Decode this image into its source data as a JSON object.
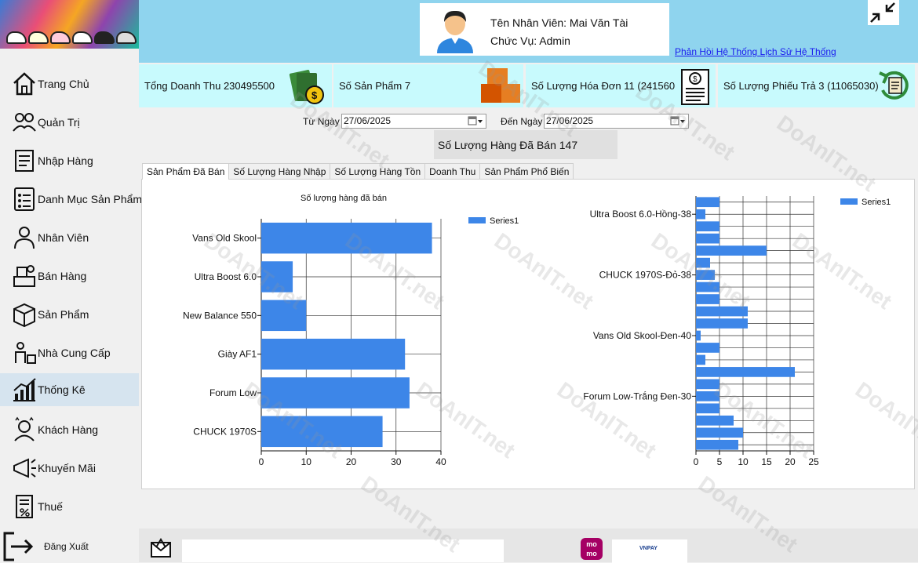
{
  "sidebar": {
    "items": [
      {
        "label": "Trang Chủ",
        "icon": "home-icon"
      },
      {
        "label": "Quản Trị",
        "icon": "people-gear-icon"
      },
      {
        "label": "Nhập Hàng",
        "icon": "import-icon"
      },
      {
        "label": "Danh Mục Sản Phẩm",
        "icon": "catalog-icon"
      },
      {
        "label": "Nhân Viên",
        "icon": "employee-icon"
      },
      {
        "label": "Bán Hàng",
        "icon": "sales-icon"
      },
      {
        "label": "Sản Phẩm",
        "icon": "box-icon"
      },
      {
        "label": "Nhà Cung Cấp",
        "icon": "supplier-icon"
      },
      {
        "label": "Thống Kê",
        "icon": "chart-icon",
        "active": true
      },
      {
        "label": "Khách Hàng",
        "icon": "customer-icon"
      },
      {
        "label": "Khuyến Mãi",
        "icon": "promotion-icon"
      },
      {
        "label": "Thuế",
        "icon": "tax-icon"
      }
    ],
    "logout_label": "Đăng Xuất"
  },
  "header": {
    "employee_name": "Tên Nhân Viên: Mai Văn Tài",
    "employee_role": "Chức Vụ: Admin",
    "link_feedback": "Phản Hồi Hệ Thống",
    "link_history": "Lịch Sử Hệ Thống"
  },
  "stats": {
    "revenue": "Tổng Doanh Thu 230495500",
    "products": "Số Sản Phẩm 7",
    "invoices": "Số Lượng Hóa Đơn 11 (241560500)",
    "returns": "Số Lượng Phiếu Trả 3 (11065030)"
  },
  "filters": {
    "from_label": "Từ Ngày",
    "from_value": "27/06/2025",
    "to_label": "Đến Ngày",
    "to_value": "27/06/2025"
  },
  "sold_total": "Số Lượng Hàng Đã Bán 147",
  "tabs": [
    "Sản Phẩm Đã Bán",
    "Số Lượng Hàng Nhập",
    "Số Lượng Hàng Tồn",
    "Doanh Thu",
    "Sản Phẩm Phổ Biến"
  ],
  "footer": {
    "momo_label": "mo mo",
    "vnpay_label": "VNPAY"
  },
  "watermark": "DoAnIT.net",
  "colors": {
    "header_bg": "#8fd4ee",
    "stat_bg": "#c8fafd",
    "bar": "#3d86e8",
    "link": "#1a1aee"
  },
  "chart_data": [
    {
      "type": "bar",
      "orientation": "horizontal",
      "title": "Số lượng hàng đã bán",
      "categories": [
        "Vans Old Skool",
        "Ultra Boost 6.0",
        "New Balance 550",
        "Giày AF1",
        "Forum Low",
        "CHUCK 1970S"
      ],
      "series": [
        {
          "name": "Series1",
          "values": [
            38,
            7,
            10,
            32,
            33,
            27
          ]
        }
      ],
      "xlim": [
        0,
        40
      ],
      "xticks": [
        0,
        10,
        20,
        30,
        40
      ],
      "grid": true,
      "legend": "top-right"
    },
    {
      "type": "bar",
      "orientation": "horizontal",
      "title": "",
      "categories": [
        "",
        "Ultra Boost 6.0-Hồng-38",
        "",
        "",
        "",
        "",
        "CHUCK 1970S-Đỏ-38",
        "",
        "",
        "",
        "",
        "Vans Old Skool-Đen-40",
        "",
        "",
        "",
        "",
        "Forum Low-Trắng Đen-30",
        "",
        "",
        "",
        ""
      ],
      "series": [
        {
          "name": "Series1",
          "values": [
            5,
            2,
            5,
            5,
            15,
            3,
            4,
            5,
            5,
            11,
            11,
            1,
            5,
            2,
            21,
            5,
            5,
            5,
            8,
            10,
            9
          ]
        }
      ],
      "xlim": [
        0,
        25
      ],
      "xticks": [
        0,
        5,
        10,
        15,
        20,
        25
      ],
      "grid": true,
      "legend": "top-right"
    }
  ]
}
